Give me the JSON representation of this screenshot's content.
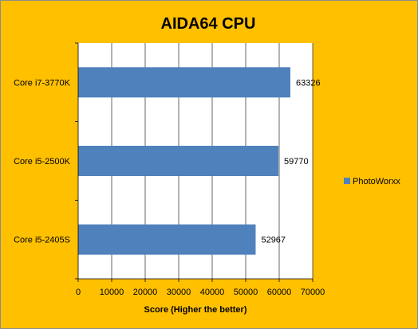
{
  "chart_data": {
    "type": "bar",
    "orientation": "horizontal",
    "title": "AIDA64 CPU",
    "xlabel": "Score (Higher the better)",
    "ylabel": "",
    "categories": [
      "Core i7-3770K",
      "Core i5-2500K",
      "Core i5-2405S"
    ],
    "series": [
      {
        "name": "PhotoWorxx",
        "values": [
          63326,
          59770,
          52967
        ],
        "color": "#4f81bd"
      }
    ],
    "xlim": [
      0,
      70000
    ],
    "xticks": [
      0,
      10000,
      20000,
      30000,
      40000,
      50000,
      60000,
      70000
    ],
    "grid": true,
    "legend_position": "right",
    "colors": {
      "background": "#ffc000",
      "plot_area": "#ffffff",
      "bar": "#4f81bd",
      "grid": "#000000"
    }
  }
}
